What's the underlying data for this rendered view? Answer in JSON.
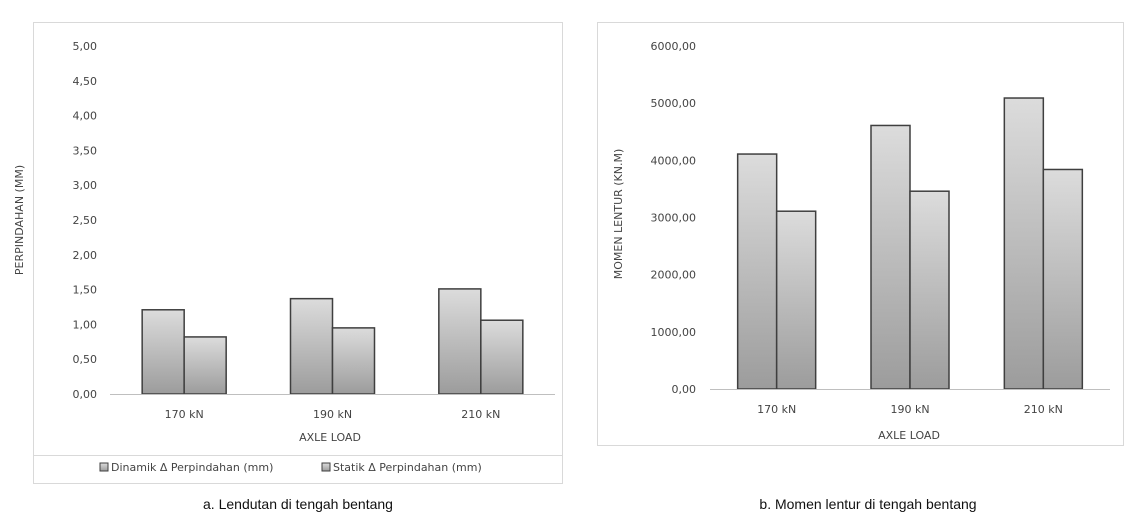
{
  "colors": {
    "bar_light": "#dcdcdc",
    "bar_dark": "#9c9c9c",
    "bar_stroke": "#3f3f3f",
    "text": "#444444",
    "frame": "#d9d9d9"
  },
  "chart_data": [
    {
      "type": "bar",
      "categories": [
        "170 kN",
        "190 kN",
        "210 kN"
      ],
      "series": [
        {
          "name": "Dinamik Δ Perpindahan (mm)",
          "values": [
            1.21,
            1.37,
            1.51
          ]
        },
        {
          "name": "Statik Δ Perpindahan (mm)",
          "values": [
            0.82,
            0.95,
            1.06
          ]
        }
      ],
      "xlabel": "AXLE LOAD",
      "ylabel": "PERPINDAHAN  (MM)",
      "ylim": [
        0,
        5
      ],
      "yticks": [
        "0,00",
        "0,50",
        "1,00",
        "1,50",
        "2,00",
        "2,50",
        "3,00",
        "3,50",
        "4,00",
        "4,50",
        "5,00"
      ],
      "grid": false,
      "legend": "bottom",
      "caption": "a. Lendutan di tengah bentang"
    },
    {
      "type": "bar",
      "categories": [
        "170 kN",
        "190 kN",
        "210 kN"
      ],
      "series": [
        {
          "values": [
            4110,
            4610,
            5090
          ]
        },
        {
          "values": [
            3110,
            3460,
            3840
          ]
        }
      ],
      "xlabel": "AXLE LOAD",
      "ylabel": "MOMEN LENTUR   (KN.M)",
      "ylim": [
        0,
        6000
      ],
      "yticks": [
        "0,00",
        "1000,00",
        "2000,00",
        "3000,00",
        "4000,00",
        "5000,00",
        "6000,00"
      ],
      "grid": false,
      "legend": "none",
      "caption": "b. Momen lentur di tengah bentang"
    }
  ]
}
